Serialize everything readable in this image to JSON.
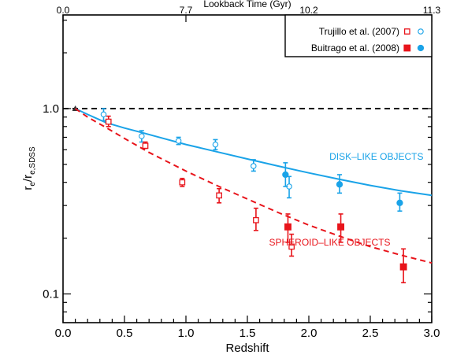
{
  "chart_data": {
    "type": "scatter",
    "xlabel": "Redshift",
    "ylabel_main": "r",
    "ylabel_sub1": "e",
    "ylabel_mid": "/r",
    "ylabel_sub2": "e,SDSS",
    "top_axis_label": "Lookback Time (Gyr)",
    "xlim": [
      0.0,
      3.0
    ],
    "ylim": [
      0.07,
      3.2
    ],
    "yscale": "log",
    "x_ticks": [
      {
        "v": 0.0,
        "label": "0.0"
      },
      {
        "v": 0.5,
        "label": "0.5"
      },
      {
        "v": 1.0,
        "label": "1.0"
      },
      {
        "v": 1.5,
        "label": "1.5"
      },
      {
        "v": 2.0,
        "label": "2.0"
      },
      {
        "v": 2.5,
        "label": "2.5"
      },
      {
        "v": 3.0,
        "label": "3.0"
      }
    ],
    "y_ticks": [
      {
        "v": 0.1,
        "label": "0.1"
      },
      {
        "v": 1.0,
        "label": "1.0"
      }
    ],
    "top_ticks": [
      {
        "z": 0.0,
        "label": "0.0"
      },
      {
        "z": 1.0,
        "label": "7.7"
      },
      {
        "z": 2.0,
        "label": "10.2"
      },
      {
        "z": 3.0,
        "label": "11.3"
      }
    ],
    "reference_line": {
      "y": 1.0,
      "style": "dashed",
      "color": "#000000"
    },
    "legend": {
      "position": "top-right",
      "entries": [
        {
          "label": "Trujillo et al. (2007)",
          "filled": false
        },
        {
          "label": "Buitrago et al. (2008)",
          "filled": true
        }
      ]
    },
    "annotations": [
      {
        "text": "DISK–LIKE OBJECTS",
        "color": "#1aa3e8",
        "x": 2.55,
        "y": 0.55
      },
      {
        "text": "SPHEROID–LIKE OBJECTS",
        "color": "#e8141b",
        "x": 2.17,
        "y": 0.19
      }
    ],
    "colors": {
      "disk": "#1aa3e8",
      "spheroid": "#e8141b"
    },
    "fits": [
      {
        "group": "disk",
        "style": "solid",
        "points": [
          [
            0.1,
            1.0
          ],
          [
            0.2,
            0.93
          ],
          [
            0.35,
            0.84
          ],
          [
            0.5,
            0.785
          ],
          [
            0.65,
            0.74
          ],
          [
            0.8,
            0.695
          ],
          [
            1.0,
            0.64
          ],
          [
            1.25,
            0.585
          ],
          [
            1.5,
            0.535
          ],
          [
            1.75,
            0.49
          ],
          [
            2.0,
            0.45
          ],
          [
            2.25,
            0.415
          ],
          [
            2.5,
            0.385
          ],
          [
            2.75,
            0.36
          ],
          [
            3.0,
            0.34
          ]
        ]
      },
      {
        "group": "spheroid",
        "style": "dashed",
        "points": [
          [
            0.1,
            1.0
          ],
          [
            0.2,
            0.9
          ],
          [
            0.35,
            0.79
          ],
          [
            0.5,
            0.69
          ],
          [
            0.7,
            0.58
          ],
          [
            1.0,
            0.46
          ],
          [
            1.25,
            0.385
          ],
          [
            1.5,
            0.325
          ],
          [
            1.75,
            0.275
          ],
          [
            2.0,
            0.235
          ],
          [
            2.25,
            0.205
          ],
          [
            2.5,
            0.18
          ],
          [
            2.75,
            0.162
          ],
          [
            3.0,
            0.147
          ]
        ]
      }
    ],
    "series": [
      {
        "group": "disk",
        "source": "Trujillo et al. (2007)",
        "marker": "circle",
        "filled": false,
        "points": [
          [
            0.33,
            0.93,
            0.86,
            1.0
          ],
          [
            0.64,
            0.71,
            0.66,
            0.76
          ],
          [
            0.94,
            0.67,
            0.64,
            0.7
          ],
          [
            1.24,
            0.64,
            0.6,
            0.68
          ],
          [
            1.55,
            0.49,
            0.46,
            0.53
          ],
          [
            1.84,
            0.38,
            0.33,
            0.43
          ]
        ]
      },
      {
        "group": "disk",
        "source": "Buitrago et al. (2008)",
        "marker": "circle",
        "filled": true,
        "points": [
          [
            1.81,
            0.44,
            0.38,
            0.51
          ],
          [
            2.25,
            0.39,
            0.35,
            0.44
          ],
          [
            2.74,
            0.31,
            0.28,
            0.35
          ]
        ]
      },
      {
        "group": "spheroid",
        "source": "Trujillo et al. (2007)",
        "marker": "square",
        "filled": false,
        "points": [
          [
            0.37,
            0.85,
            0.8,
            0.91
          ],
          [
            0.67,
            0.63,
            0.61,
            0.66
          ],
          [
            0.97,
            0.4,
            0.38,
            0.42
          ],
          [
            1.27,
            0.34,
            0.31,
            0.37
          ],
          [
            1.57,
            0.25,
            0.22,
            0.29
          ],
          [
            1.86,
            0.18,
            0.16,
            0.21
          ]
        ]
      },
      {
        "group": "spheroid",
        "source": "Buitrago et al. (2008)",
        "marker": "square",
        "filled": true,
        "points": [
          [
            1.83,
            0.23,
            0.19,
            0.27
          ],
          [
            2.26,
            0.23,
            0.19,
            0.27
          ],
          [
            2.77,
            0.14,
            0.115,
            0.175
          ]
        ]
      }
    ]
  }
}
